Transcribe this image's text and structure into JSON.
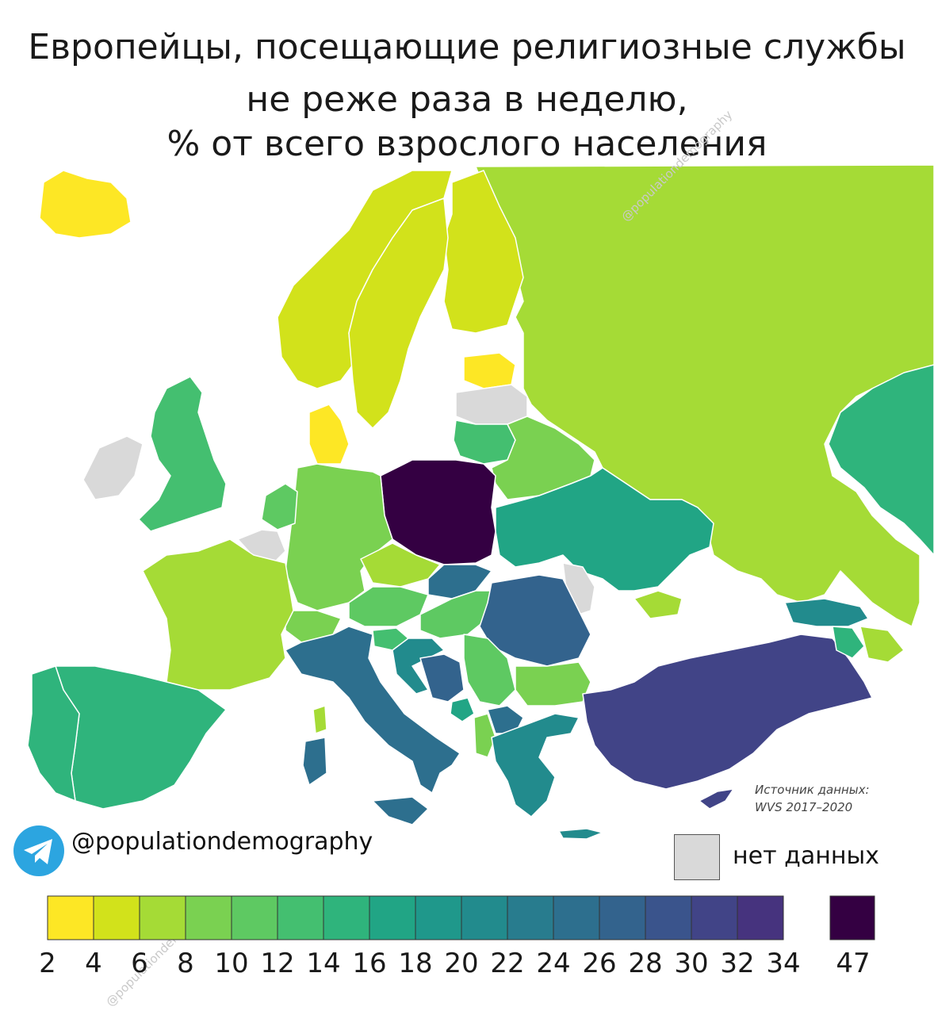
{
  "title": {
    "line1": "Европейцы, посещающие религиозные службы",
    "line2": "не реже раза в неделю,",
    "line3": "% от всего взрослого населения"
  },
  "watermark": "@populationdemography",
  "source": {
    "line1": "Источник данных:",
    "line2": "WVS 2017–2020"
  },
  "brand": {
    "icon": "telegram-icon",
    "handle": "@populationdemography",
    "icon_color": "#2ca5e0"
  },
  "legend": {
    "no_data_label": "нет данных",
    "no_data_color": "#d9d9d9",
    "bins": [
      {
        "from": 2,
        "to": 4,
        "color": "#fde725"
      },
      {
        "from": 4,
        "to": 6,
        "color": "#d2e21b"
      },
      {
        "from": 6,
        "to": 8,
        "color": "#a5db36"
      },
      {
        "from": 8,
        "to": 10,
        "color": "#7ad151"
      },
      {
        "from": 10,
        "to": 12,
        "color": "#5ec962"
      },
      {
        "from": 12,
        "to": 14,
        "color": "#44bf70"
      },
      {
        "from": 14,
        "to": 16,
        "color": "#2fb47c"
      },
      {
        "from": 16,
        "to": 18,
        "color": "#21a585"
      },
      {
        "from": 18,
        "to": 20,
        "color": "#1f988b"
      },
      {
        "from": 20,
        "to": 22,
        "color": "#228b8d"
      },
      {
        "from": 22,
        "to": 24,
        "color": "#287c8e"
      },
      {
        "from": 24,
        "to": 26,
        "color": "#2d6f8e"
      },
      {
        "from": 26,
        "to": 28,
        "color": "#33638d"
      },
      {
        "from": 28,
        "to": 30,
        "color": "#3a548c"
      },
      {
        "from": 30,
        "to": 32,
        "color": "#414487"
      },
      {
        "from": 32,
        "to": 34,
        "color": "#46337e"
      }
    ],
    "ticks": [
      "2",
      "4",
      "6",
      "8",
      "10",
      "12",
      "14",
      "16",
      "18",
      "20",
      "22",
      "24",
      "26",
      "28",
      "30",
      "32",
      "34"
    ],
    "outlier": {
      "value": "47",
      "color": "#340042"
    }
  },
  "chart_data": {
    "type": "choropleth",
    "unit": "%",
    "regions": [
      {
        "name": "Iceland",
        "color": "#fde725"
      },
      {
        "name": "Norway",
        "color": "#d2e21b"
      },
      {
        "name": "Sweden",
        "color": "#d2e21b"
      },
      {
        "name": "Finland",
        "color": "#d2e21b"
      },
      {
        "name": "Denmark",
        "color": "#fde725"
      },
      {
        "name": "Estonia",
        "color": "#fde725"
      },
      {
        "name": "Latvia",
        "color": "#d9d9d9"
      },
      {
        "name": "Lithuania",
        "color": "#44bf70"
      },
      {
        "name": "Russia",
        "color": "#a5db36"
      },
      {
        "name": "Belarus",
        "color": "#7ad151"
      },
      {
        "name": "Ukraine",
        "color": "#21a585"
      },
      {
        "name": "Moldova",
        "color": "#d9d9d9"
      },
      {
        "name": "Poland",
        "color": "#340042"
      },
      {
        "name": "Germany",
        "color": "#7ad151"
      },
      {
        "name": "Netherlands",
        "color": "#5ec962"
      },
      {
        "name": "Belgium",
        "color": "#d9d9d9"
      },
      {
        "name": "United Kingdom",
        "color": "#44bf70"
      },
      {
        "name": "Ireland",
        "color": "#d9d9d9"
      },
      {
        "name": "France",
        "color": "#a5db36"
      },
      {
        "name": "Spain",
        "color": "#2fb47c"
      },
      {
        "name": "Portugal",
        "color": "#2fb47c"
      },
      {
        "name": "Switzerland",
        "color": "#7ad151"
      },
      {
        "name": "Austria",
        "color": "#5ec962"
      },
      {
        "name": "Czechia",
        "color": "#a5db36"
      },
      {
        "name": "Slovakia",
        "color": "#2d6f8e"
      },
      {
        "name": "Hungary",
        "color": "#5ec962"
      },
      {
        "name": "Romania",
        "color": "#33638d"
      },
      {
        "name": "Bulgaria",
        "color": "#7ad151"
      },
      {
        "name": "Slovenia",
        "color": "#44bf70"
      },
      {
        "name": "Croatia",
        "color": "#228b8d"
      },
      {
        "name": "Bosnia and Herzegovina",
        "color": "#33638d"
      },
      {
        "name": "Serbia",
        "color": "#5ec962"
      },
      {
        "name": "Montenegro",
        "color": "#21a585"
      },
      {
        "name": "North Macedonia",
        "color": "#2d6f8e"
      },
      {
        "name": "Albania",
        "color": "#7ad151"
      },
      {
        "name": "Greece",
        "color": "#228b8d"
      },
      {
        "name": "Italy",
        "color": "#2d6f8e"
      },
      {
        "name": "Turkey",
        "color": "#414487"
      },
      {
        "name": "Cyprus",
        "color": "#414487"
      },
      {
        "name": "Georgia",
        "color": "#228b8d"
      },
      {
        "name": "Armenia",
        "color": "#2fb47c"
      },
      {
        "name": "Azerbaijan",
        "color": "#a5db36"
      },
      {
        "name": "Kazakhstan",
        "color": "#2fb47c"
      }
    ]
  }
}
